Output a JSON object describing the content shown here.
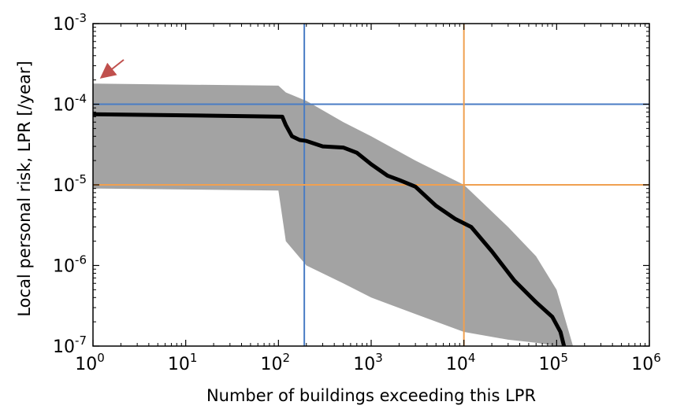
{
  "chart_data": {
    "type": "line",
    "xlabel": "Number of buildings exceeding this LPR",
    "ylabel": "Local personal risk, LPR [/year]",
    "x_scale": "log",
    "y_scale": "log",
    "xlim": [
      1,
      1000000
    ],
    "ylim": [
      1e-07,
      0.001
    ],
    "x_ticks": [
      {
        "value": 1,
        "base": "10",
        "exp": "0"
      },
      {
        "value": 10,
        "base": "10",
        "exp": "1"
      },
      {
        "value": 100,
        "base": "10",
        "exp": "2"
      },
      {
        "value": 1000,
        "base": "10",
        "exp": "3"
      },
      {
        "value": 10000,
        "base": "10",
        "exp": "4"
      },
      {
        "value": 100000,
        "base": "10",
        "exp": "5"
      },
      {
        "value": 1000000,
        "base": "10",
        "exp": "6"
      }
    ],
    "y_ticks": [
      {
        "value": 1e-07,
        "base": "10",
        "exp": "-7"
      },
      {
        "value": 1e-06,
        "base": "10",
        "exp": "-6"
      },
      {
        "value": 1e-05,
        "base": "10",
        "exp": "-5"
      },
      {
        "value": 0.0001,
        "base": "10",
        "exp": "-4"
      },
      {
        "value": 0.001,
        "base": "10",
        "exp": "-3"
      }
    ],
    "grid": false,
    "series": [
      {
        "color": "#000000",
        "x": [
          1,
          20,
          110,
          120,
          140,
          170,
          200,
          300,
          500,
          700,
          1000,
          1500,
          2000,
          3000,
          5000,
          8000,
          12000,
          20000,
          35000,
          60000,
          90000,
          110000,
          120000
        ],
        "y": [
          7.5e-05,
          7.2e-05,
          7e-05,
          5.5e-05,
          4e-05,
          3.6e-05,
          3.5e-05,
          3e-05,
          2.9e-05,
          2.5e-05,
          1.8e-05,
          1.3e-05,
          1.15e-05,
          9.5e-06,
          5.5e-06,
          3.8e-06,
          3e-06,
          1.5e-06,
          6.5e-07,
          3.5e-07,
          2.3e-07,
          1.5e-07,
          1e-07
        ]
      }
    ],
    "band": {
      "color": "#999999",
      "x": [
        1,
        100,
        120,
        200,
        500,
        1000,
        3000,
        10000,
        30000,
        60000,
        100000,
        150000
      ],
      "upper": [
        0.00018,
        0.00017,
        0.00014,
        0.00011,
        6e-05,
        4e-05,
        2e-05,
        1e-05,
        3e-06,
        1.3e-06,
        5e-07,
        1e-07
      ],
      "lower": [
        9e-06,
        8.5e-06,
        2e-06,
        1e-06,
        6e-07,
        4e-07,
        2.5e-07,
        1.5e-07,
        1.2e-07,
        1.1e-07,
        1e-07,
        1e-07
      ]
    },
    "reference_lines": [
      {
        "orientation": "vertical",
        "value": 190,
        "color": "#4a7cc4"
      },
      {
        "orientation": "horizontal",
        "value": 0.0001,
        "color": "#4a7cc4"
      },
      {
        "orientation": "vertical",
        "value": 10000,
        "color": "#f0a050"
      },
      {
        "orientation": "horizontal",
        "value": 1e-05,
        "color": "#f0a050"
      }
    ],
    "annotation_arrow": {
      "color": "#c0504d",
      "points_to": "upper-left start of the band"
    }
  }
}
